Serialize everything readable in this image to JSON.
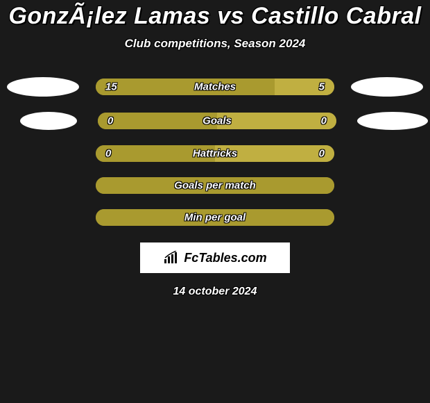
{
  "title": "GonzÃ¡lez Lamas vs Castillo Cabral",
  "subtitle": "Club competitions, Season 2024",
  "date": "14 october 2024",
  "logo_text": "FcTables.com",
  "bar_colors": {
    "left": "#a99a2f",
    "right": "#c0af41",
    "background": "#a99a2f"
  },
  "background_color": "#1a1a1a",
  "oval_color": "#ffffff",
  "rows": [
    {
      "label": "Matches",
      "left": "15",
      "right": "5",
      "left_pct": 75,
      "right_pct": 25,
      "show_ovals": true,
      "oval_variant": "normal"
    },
    {
      "label": "Goals",
      "left": "0",
      "right": "0",
      "left_pct": 50,
      "right_pct": 50,
      "show_ovals": true,
      "oval_variant": "shift"
    },
    {
      "label": "Hattricks",
      "left": "0",
      "right": "0",
      "left_pct": 50,
      "right_pct": 50,
      "show_ovals": false
    },
    {
      "label": "Goals per match",
      "left": "",
      "right": "",
      "left_pct": 100,
      "right_pct": 0,
      "show_ovals": false
    },
    {
      "label": "Min per goal",
      "left": "",
      "right": "",
      "left_pct": 100,
      "right_pct": 0,
      "show_ovals": false
    }
  ]
}
